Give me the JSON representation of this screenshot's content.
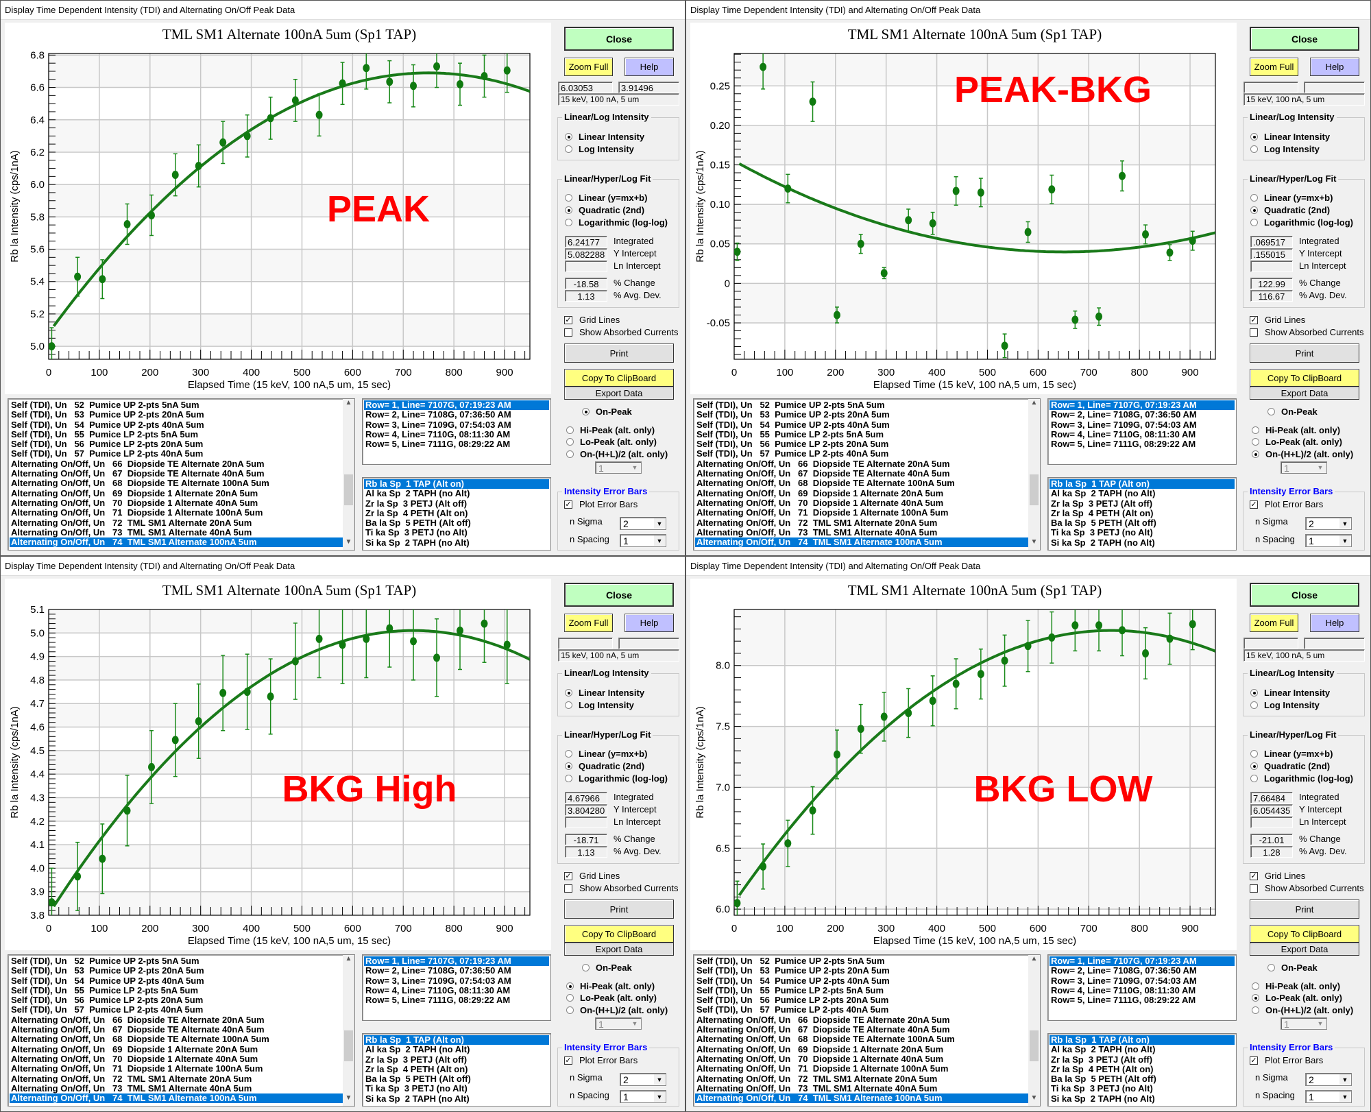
{
  "window_title": "Display Time Dependent Intensity (TDI) and Alternating On/Off Peak Data",
  "labels": {
    "close": "Close",
    "zoom_full": "Zoom Full",
    "help": "Help",
    "intensity_group": "Linear/Log Intensity",
    "linear_intensity": "Linear Intensity",
    "log_intensity": "Log Intensity",
    "fit_group": "Linear/Hyper/Log Fit",
    "fit_linear": "Linear (y=mx+b)",
    "fit_quadratic": "Quadratic (2nd)",
    "fit_log": "Logarithmic (log-log)",
    "integrated": "Integrated",
    "y_intercept": "Y Intercept",
    "ln_intercept": "Ln Intercept",
    "pct_change": "% Change",
    "pct_avg_dev": "% Avg. Dev.",
    "grid_lines": "Grid Lines",
    "show_absorbed": "Show Absorbed Currents",
    "print": "Print",
    "copy_clipboard": "Copy To ClipBoard",
    "export_data": "Export Data",
    "on_peak": "On-Peak",
    "hi_peak": "Hi-Peak (alt. only)",
    "lo_peak": "Lo-Peak (alt. only)",
    "on_hl": "On-(H+L)/2 (alt. only)",
    "error_bars_group": "Intensity Error Bars",
    "plot_error_bars": "Plot Error Bars",
    "n_sigma": "n Sigma",
    "n_spacing": "n Spacing"
  },
  "lists": {
    "runs": [
      "Self (TDI), Un   52  Pumice UP 2-pts 5nA 5um",
      "Self (TDI), Un   53  Pumice UP 2-pts 20nA 5um",
      "Self (TDI), Un   54  Pumice UP 2-pts 40nA 5um",
      "Self (TDI), Un   55  Pumice LP 2-pts 5nA 5um",
      "Self (TDI), Un   56  Pumice LP 2-pts 20nA 5um",
      "Self (TDI), Un   57  Pumice LP 2-pts 40nA 5um",
      "Alternating On/Off, Un   66  Diopside TE Alternate 20nA 5um",
      "Alternating On/Off, Un   67  Diopside TE Alternate 40nA 5um",
      "Alternating On/Off, Un   68  Diopside TE Alternate 100nA 5um",
      "Alternating On/Off, Un   69  Diopside 1 Alternate 20nA 5um",
      "Alternating On/Off, Un   70  Diopside 1 Alternate 40nA 5um",
      "Alternating On/Off, Un   71  Diopside 1 Alternate 100nA 5um",
      "Alternating On/Off, Un   72  TML SM1 Alternate 20nA 5um",
      "Alternating On/Off, Un   73  TML SM1 Alternate 40nA 5um",
      "Alternating On/Off, Un   74  TML SM1 Alternate 100nA 5um"
    ],
    "runs_selected": 14,
    "rows": [
      "Row= 1, Line= 7107G, 07:19:23 AM",
      "Row= 2, Line= 7108G, 07:36:50 AM",
      "Row= 3, Line= 7109G, 07:54:03 AM",
      "Row= 4, Line= 7110G, 08:11:30 AM",
      "Row= 5, Line= 7111G, 08:29:22 AM"
    ],
    "rows_selected": 0,
    "elements": [
      "Rb la Sp  1 TAP (Alt on)",
      "Al ka Sp  2 TAPH (no Alt)",
      "Zr la Sp  3 PETJ (Alt off)",
      "Zr la Sp  4 PETH (Alt on)",
      "Ba la Sp  5 PETH (Alt off)",
      "Ti ka Sp  3 PETJ (no Alt)",
      "Si ka Sp  2 TAPH (no Alt)"
    ],
    "elements_selected": 0
  },
  "panels": [
    {
      "value_box_1": "6.03053",
      "value_box_2": "3.91496",
      "conditions": "15 keV, 100 nA, 5 um",
      "intensity_mode": "linear",
      "fit_mode": "quadratic",
      "integrated": "6.24177",
      "y_intercept": "5.082288",
      "ln_intercept": "",
      "pct_change": "-18.58",
      "pct_avg_dev": "1.13",
      "grid_lines": true,
      "show_absorbed": false,
      "peak_mode": "on_peak",
      "peak_dropdown": "1",
      "plot_error_bars": true,
      "n_sigma": "2",
      "n_spacing": "1"
    },
    {
      "value_box_1": "",
      "value_box_2": "",
      "conditions": "15 keV, 100 nA, 5 um",
      "intensity_mode": "linear",
      "fit_mode": "quadratic",
      "integrated": ".069517",
      "y_intercept": ".155015",
      "ln_intercept": "",
      "pct_change": "122.99",
      "pct_avg_dev": "116.67",
      "grid_lines": true,
      "show_absorbed": false,
      "peak_mode": "on_hl",
      "peak_dropdown": "1",
      "plot_error_bars": true,
      "n_sigma": "2",
      "n_spacing": "1"
    },
    {
      "value_box_1": "",
      "value_box_2": "",
      "conditions": "15 keV, 100 nA, 5 um",
      "intensity_mode": "linear",
      "fit_mode": "quadratic",
      "integrated": "4.67966",
      "y_intercept": "3.804280",
      "ln_intercept": "",
      "pct_change": "-18.71",
      "pct_avg_dev": "1.13",
      "grid_lines": true,
      "show_absorbed": false,
      "peak_mode": "hi_peak",
      "peak_dropdown": "1",
      "plot_error_bars": true,
      "n_sigma": "2",
      "n_spacing": "1"
    },
    {
      "value_box_1": "",
      "value_box_2": "",
      "conditions": "15 keV, 100 nA, 5 um",
      "intensity_mode": "linear",
      "fit_mode": "quadratic",
      "integrated": "7.66484",
      "y_intercept": "6.054435",
      "ln_intercept": "",
      "pct_change": "-21.01",
      "pct_avg_dev": "1.28",
      "grid_lines": true,
      "show_absorbed": false,
      "peak_mode": "lo_peak",
      "peak_dropdown": "1",
      "plot_error_bars": true,
      "n_sigma": "2",
      "n_spacing": "1"
    }
  ],
  "chart_data": [
    {
      "type": "scatter",
      "title": "TML SM1 Alternate 100nA 5um (Sp1 TAP)",
      "annotation": "PEAK",
      "xlabel": "Elapsed Time (15 keV, 100 nA,5 um, 15 sec)",
      "ylabel": "Rb la Intensity (cps/1nA)",
      "xlim": [
        0,
        950
      ],
      "ylim": [
        4.92,
        6.81
      ],
      "xticks": [
        0,
        100,
        200,
        300,
        400,
        500,
        600,
        700,
        800,
        900
      ],
      "yticks": [
        5.0,
        5.2,
        5.4,
        5.6,
        5.8,
        6.0,
        6.2,
        6.4,
        6.6,
        6.8
      ],
      "ytick_labels": [
        "5.0",
        "5.2",
        "5.4",
        "5.6",
        "5.8",
        "6.0",
        "6.2",
        "6.4",
        "6.6",
        "6.8"
      ],
      "yminor": 0.05,
      "grid": true,
      "x": [
        6,
        57,
        106,
        155,
        203,
        250,
        296,
        344,
        392,
        438,
        487,
        534,
        580,
        627,
        673,
        720,
        766,
        812,
        860,
        905
      ],
      "y": [
        5.0,
        5.43,
        5.415,
        5.755,
        5.81,
        6.06,
        6.115,
        6.26,
        6.3,
        6.41,
        6.52,
        6.43,
        6.625,
        6.72,
        6.635,
        6.61,
        6.73,
        6.62,
        6.67,
        6.705
      ],
      "err": [
        0.115,
        0.12,
        0.12,
        0.125,
        0.125,
        0.13,
        0.13,
        0.13,
        0.13,
        0.13,
        0.13,
        0.13,
        0.13,
        0.13,
        0.13,
        0.13,
        0.13,
        0.13,
        0.13,
        0.135
      ],
      "fit": {
        "type": "quadratic",
        "coefficients": [
          5.082288,
          0.004287,
          -2.858e-06
        ]
      }
    },
    {
      "type": "scatter",
      "title": "TML SM1 Alternate 100nA 5um (Sp1 TAP)",
      "annotation": "PEAK-BKG",
      "xlabel": "Elapsed Time (15 keV, 100 nA,5 um, 15 sec)",
      "ylabel": "Rb la Intensity (cps/1nA)",
      "xlim": [
        0,
        950
      ],
      "ylim": [
        -0.096,
        0.291
      ],
      "xticks": [
        0,
        100,
        200,
        300,
        400,
        500,
        600,
        700,
        800,
        900
      ],
      "yticks": [
        -0.05,
        0,
        0.05,
        0.1,
        0.15,
        0.2,
        0.25
      ],
      "ytick_labels": [
        "-0.05",
        "0",
        "0.05",
        "0.10",
        "0.15",
        "0.20",
        "0.25"
      ],
      "yminor": 0.01,
      "grid": true,
      "x": [
        6,
        57,
        106,
        155,
        203,
        250,
        296,
        344,
        392,
        438,
        487,
        534,
        580,
        627,
        673,
        720,
        766,
        812,
        860,
        905
      ],
      "y": [
        0.04,
        0.274,
        0.12,
        0.23,
        -0.04,
        0.05,
        0.013,
        0.08,
        0.076,
        0.117,
        0.115,
        -0.079,
        0.065,
        0.119,
        -0.046,
        -0.042,
        0.136,
        0.062,
        0.039,
        0.054
      ],
      "err": [
        0.011,
        0.028,
        0.018,
        0.025,
        0.01,
        0.012,
        0.007,
        0.014,
        0.014,
        0.018,
        0.018,
        0.015,
        0.013,
        0.018,
        0.011,
        0.011,
        0.019,
        0.012,
        0.01,
        0.012
      ],
      "fit": {
        "type": "quadratic",
        "coefficients": [
          0.155015,
          -0.000354,
          2.72e-07
        ]
      }
    },
    {
      "type": "scatter",
      "title": "TML SM1 Alternate 100nA 5um (Sp1 TAP)",
      "annotation": "BKG High",
      "xlabel": "Elapsed Time (15 keV, 100 nA,5 um, 15 sec)",
      "ylabel": "Rb la Intensity (cps/1nA)",
      "xlim": [
        0,
        950
      ],
      "ylim": [
        3.8,
        5.1
      ],
      "xticks": [
        0,
        100,
        200,
        300,
        400,
        500,
        600,
        700,
        800,
        900
      ],
      "yticks": [
        3.8,
        3.9,
        4.0,
        4.1,
        4.2,
        4.3,
        4.4,
        4.5,
        4.6,
        4.7,
        4.8,
        4.9,
        5.0,
        5.1
      ],
      "ytick_labels": [
        "3.8",
        "3.9",
        "4.0",
        "4.1",
        "4.2",
        "4.3",
        "4.4",
        "4.5",
        "4.6",
        "4.7",
        "4.8",
        "4.9",
        "5.0",
        "5.1"
      ],
      "yminor": 0.02,
      "grid": true,
      "x": [
        6,
        57,
        106,
        155,
        203,
        250,
        296,
        344,
        392,
        438,
        487,
        534,
        580,
        627,
        673,
        720,
        766,
        812,
        860,
        905
      ],
      "y": [
        3.855,
        3.965,
        4.04,
        4.245,
        4.43,
        4.545,
        4.625,
        4.745,
        4.75,
        4.73,
        4.88,
        4.975,
        4.95,
        4.975,
        5.02,
        4.965,
        4.895,
        5.01,
        5.04,
        4.95
      ],
      "err": [
        0.145,
        0.145,
        0.148,
        0.15,
        0.155,
        0.155,
        0.158,
        0.16,
        0.16,
        0.16,
        0.162,
        0.165,
        0.165,
        0.165,
        0.165,
        0.165,
        0.165,
        0.165,
        0.165,
        0.165
      ],
      "fit": {
        "type": "quadratic",
        "coefficients": [
          3.80428,
          0.00335,
          -2.326e-06
        ]
      }
    },
    {
      "type": "scatter",
      "title": "TML SM1 Alternate 100nA 5um (Sp1 TAP)",
      "annotation": "BKG LOW",
      "xlabel": "Elapsed Time (15 keV, 100 nA,5 um, 15 sec)",
      "ylabel": "Rb la Intensity (cps/1nA)",
      "xlim": [
        0,
        950
      ],
      "ylim": [
        5.95,
        8.46
      ],
      "xticks": [
        0,
        100,
        200,
        300,
        400,
        500,
        600,
        700,
        800,
        900
      ],
      "yticks": [
        6.0,
        6.5,
        7.0,
        7.5,
        8.0
      ],
      "ytick_labels": [
        "6.0",
        "6.5",
        "7.0",
        "7.5",
        "8.0"
      ],
      "yminor": 0.1,
      "grid": true,
      "x": [
        6,
        57,
        106,
        155,
        203,
        250,
        296,
        344,
        392,
        438,
        487,
        534,
        580,
        627,
        673,
        720,
        766,
        812,
        860,
        905
      ],
      "y": [
        6.05,
        6.35,
        6.54,
        6.81,
        7.27,
        7.48,
        7.58,
        7.61,
        7.71,
        7.85,
        7.93,
        8.04,
        8.16,
        8.23,
        8.33,
        8.33,
        8.29,
        8.1,
        8.22,
        8.34
      ],
      "err": [
        0.18,
        0.185,
        0.19,
        0.195,
        0.2,
        0.2,
        0.2,
        0.2,
        0.205,
        0.205,
        0.205,
        0.21,
        0.21,
        0.21,
        0.21,
        0.21,
        0.21,
        0.21,
        0.21,
        0.21
      ],
      "fit": {
        "type": "quadratic",
        "coefficients": [
          6.054435,
          0.006,
          -4.03e-06
        ]
      }
    }
  ]
}
